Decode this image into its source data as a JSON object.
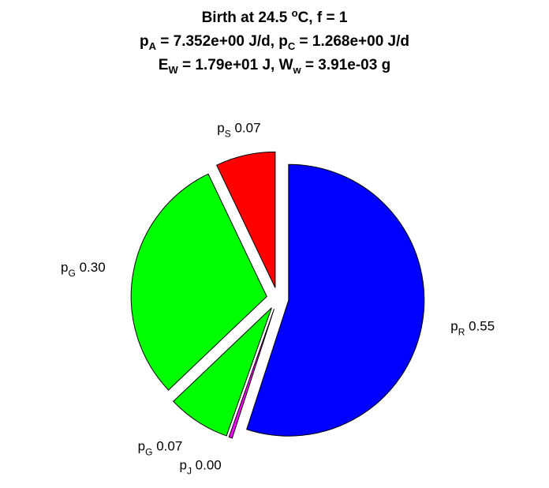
{
  "title": {
    "line1": {
      "a": "Birth at 24.5 ",
      "deg": "o",
      "b": "C, f = 1"
    },
    "line2": {
      "a": "p",
      "a_sub": "A",
      "b": " = 7.352e+00 J/d, p",
      "b_sub": "C",
      "c": " = 1.268e+00 J/d"
    },
    "line3": {
      "a": "E",
      "a_sub": "W",
      "b": " = 1.79e+01 J, W",
      "b_sub": "w",
      "c": " = 3.91e-03 g"
    }
  },
  "chart_data": {
    "type": "pie",
    "slices": [
      {
        "label_main": "p",
        "label_sub": "R",
        "label_value": "0.55",
        "value": 0.55,
        "color": "#0000ff"
      },
      {
        "label_main": "p",
        "label_sub": "J",
        "label_value": "0.00",
        "value": 0.004,
        "color": "#ff00ff"
      },
      {
        "label_main": "p",
        "label_sub": "G",
        "label_value": "0.07",
        "value": 0.075,
        "color": "#00ff00"
      },
      {
        "label_main": "p",
        "label_sub": "G",
        "label_value": "0.30",
        "value": 0.3,
        "color": "#00ff00"
      },
      {
        "label_main": "p",
        "label_sub": "S",
        "label_value": "0.07",
        "value": 0.071,
        "color": "#ff0000"
      }
    ],
    "exploded": true
  }
}
